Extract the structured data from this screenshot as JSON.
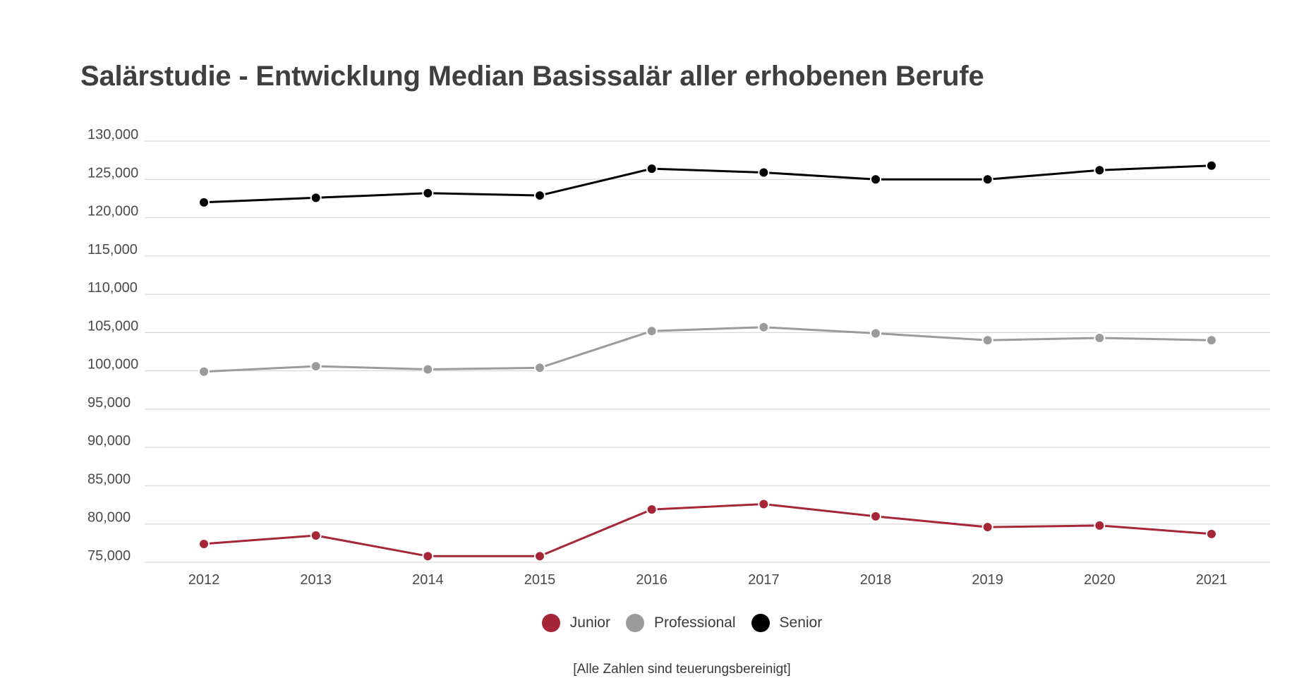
{
  "chart_data": {
    "type": "line",
    "title": "Salärstudie - Entwicklung Median Basissalär aller erhobenen Berufe",
    "x": [
      "2012",
      "2013",
      "2014",
      "2015",
      "2016",
      "2017",
      "2018",
      "2019",
      "2020",
      "2021"
    ],
    "y_ticks": [
      "130,000",
      "125,000",
      "120,000",
      "115,000",
      "110,000",
      "105,000",
      "100,000",
      "95,000",
      "90,000",
      "85,000",
      "80,000",
      "75,000"
    ],
    "ylim": [
      75000,
      130000
    ],
    "grid": true,
    "legend_position": "bottom",
    "series": [
      {
        "name": "Junior",
        "color": "#a52637",
        "values": [
          77400,
          78500,
          75800,
          75800,
          81900,
          82600,
          81000,
          79600,
          79800,
          78700
        ]
      },
      {
        "name": "Professional",
        "color": "#9b9b9b",
        "values": [
          99900,
          100600,
          100200,
          100400,
          105200,
          105700,
          104900,
          104000,
          104300,
          104000
        ]
      },
      {
        "name": "Senior",
        "color": "#000000",
        "values": [
          122000,
          122600,
          123200,
          122900,
          126400,
          125900,
          125000,
          125000,
          126200,
          126800
        ]
      }
    ],
    "footnote": "[Alle Zahlen sind teuerungsbereinigt]"
  }
}
